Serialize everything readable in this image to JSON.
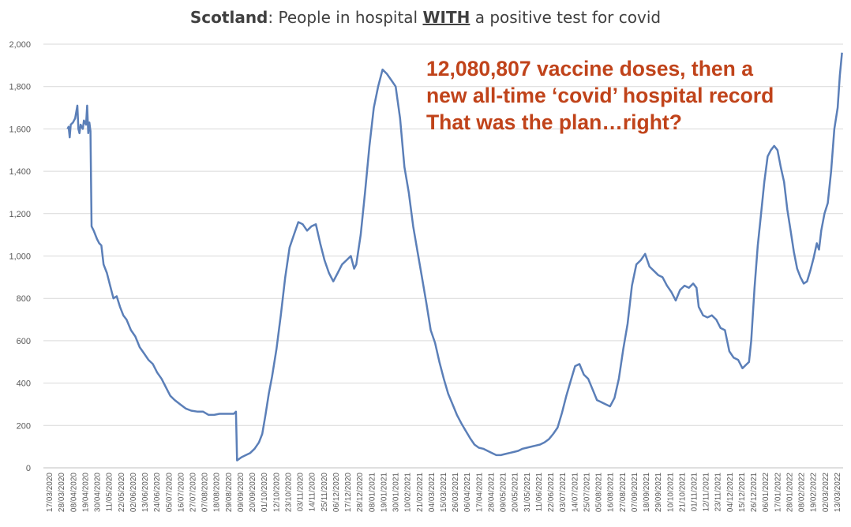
{
  "title": {
    "bold_part": "Scotland",
    "middle": ": People in hospital ",
    "emph": "WITH",
    "rest": " a positive test for covid"
  },
  "annotation": {
    "lines": [
      "12,080,807 vaccine doses, then a",
      "new all-time ‘covid’ hospital record",
      "That was the plan…right?"
    ]
  },
  "colors": {
    "line": "#5b7fb8",
    "annotation": "#c0431a",
    "grid": "#d9d9d9"
  },
  "chart_data": {
    "type": "line",
    "ylim": [
      0,
      2000
    ],
    "y_ticks": [
      "0",
      "200",
      "400",
      "600",
      "800",
      "1,000",
      "1,200",
      "1,400",
      "1,600",
      "1,800",
      "2,000"
    ],
    "x_ticks": [
      "17/03/2020",
      "28/03/2020",
      "08/04/2020",
      "19/04/2020",
      "30/04/2020",
      "11/05/2020",
      "22/05/2020",
      "02/06/2020",
      "13/06/2020",
      "24/06/2020",
      "05/07/2020",
      "16/07/2020",
      "27/07/2020",
      "07/08/2020",
      "18/08/2020",
      "29/08/2020",
      "09/09/2020",
      "20/09/2020",
      "01/10/2020",
      "12/10/2020",
      "23/10/2020",
      "03/11/2020",
      "14/11/2020",
      "25/11/2020",
      "06/12/2020",
      "17/12/2020",
      "28/12/2020",
      "08/01/2021",
      "19/01/2021",
      "30/01/2021",
      "10/02/2021",
      "21/02/2021",
      "04/03/2021",
      "15/03/2021",
      "26/03/2021",
      "06/04/2021",
      "17/04/2021",
      "28/04/2021",
      "09/05/2021",
      "20/05/2021",
      "31/05/2021",
      "11/06/2021",
      "22/06/2021",
      "03/07/2021",
      "14/07/2021",
      "25/07/2021",
      "05/08/2021",
      "16/08/2021",
      "27/08/2021",
      "07/09/2021",
      "18/09/2021",
      "29/09/2021",
      "10/10/2021",
      "21/10/2021",
      "01/11/2021",
      "12/11/2021",
      "23/11/2021",
      "04/12/2021",
      "15/12/2021",
      "26/12/2021",
      "06/01/2022",
      "17/01/2022",
      "28/01/2022",
      "08/02/2022",
      "19/02/2022",
      "02/03/2022",
      "13/03/2022"
    ],
    "x_start": "2020-03-17",
    "x_end": "2022-03-18",
    "series": [
      {
        "points": [
          [
            "2020-04-08",
            1600
          ],
          [
            "2020-04-09",
            1610
          ],
          [
            "2020-04-10",
            1560
          ],
          [
            "2020-04-11",
            1620
          ],
          [
            "2020-04-13",
            1630
          ],
          [
            "2020-04-15",
            1650
          ],
          [
            "2020-04-17",
            1710
          ],
          [
            "2020-04-18",
            1600
          ],
          [
            "2020-04-19",
            1580
          ],
          [
            "2020-04-20",
            1620
          ],
          [
            "2020-04-22",
            1600
          ],
          [
            "2020-04-23",
            1640
          ],
          [
            "2020-04-25",
            1620
          ],
          [
            "2020-04-26",
            1710
          ],
          [
            "2020-04-27",
            1580
          ],
          [
            "2020-04-28",
            1630
          ],
          [
            "2020-04-29",
            1590
          ],
          [
            "2020-04-30",
            1140
          ],
          [
            "2020-05-02",
            1120
          ],
          [
            "2020-05-05",
            1080
          ],
          [
            "2020-05-07",
            1060
          ],
          [
            "2020-05-09",
            1050
          ],
          [
            "2020-05-11",
            960
          ],
          [
            "2020-05-14",
            920
          ],
          [
            "2020-05-17",
            860
          ],
          [
            "2020-05-20",
            800
          ],
          [
            "2020-05-23",
            810
          ],
          [
            "2020-05-26",
            760
          ],
          [
            "2020-05-29",
            720
          ],
          [
            "2020-06-01",
            700
          ],
          [
            "2020-06-05",
            650
          ],
          [
            "2020-06-09",
            620
          ],
          [
            "2020-06-13",
            570
          ],
          [
            "2020-06-17",
            540
          ],
          [
            "2020-06-21",
            510
          ],
          [
            "2020-06-25",
            490
          ],
          [
            "2020-06-29",
            450
          ],
          [
            "2020-07-03",
            420
          ],
          [
            "2020-07-07",
            380
          ],
          [
            "2020-07-11",
            340
          ],
          [
            "2020-07-15",
            320
          ],
          [
            "2020-07-20",
            300
          ],
          [
            "2020-07-25",
            280
          ],
          [
            "2020-07-30",
            270
          ],
          [
            "2020-08-05",
            265
          ],
          [
            "2020-08-10",
            265
          ],
          [
            "2020-08-15",
            250
          ],
          [
            "2020-08-20",
            250
          ],
          [
            "2020-08-25",
            255
          ],
          [
            "2020-08-30",
            255
          ],
          [
            "2020-09-04",
            255
          ],
          [
            "2020-09-07",
            255
          ],
          [
            "2020-09-09",
            265
          ],
          [
            "2020-09-10",
            35
          ],
          [
            "2020-09-14",
            50
          ],
          [
            "2020-09-18",
            60
          ],
          [
            "2020-09-22",
            70
          ],
          [
            "2020-09-26",
            90
          ],
          [
            "2020-09-30",
            120
          ],
          [
            "2020-10-03",
            160
          ],
          [
            "2020-10-06",
            250
          ],
          [
            "2020-10-09",
            350
          ],
          [
            "2020-10-12",
            430
          ],
          [
            "2020-10-16",
            560
          ],
          [
            "2020-10-20",
            720
          ],
          [
            "2020-10-24",
            900
          ],
          [
            "2020-10-28",
            1040
          ],
          [
            "2020-11-01",
            1100
          ],
          [
            "2020-11-05",
            1160
          ],
          [
            "2020-11-09",
            1150
          ],
          [
            "2020-11-13",
            1120
          ],
          [
            "2020-11-17",
            1140
          ],
          [
            "2020-11-21",
            1150
          ],
          [
            "2020-11-25",
            1060
          ],
          [
            "2020-11-29",
            980
          ],
          [
            "2020-12-03",
            920
          ],
          [
            "2020-12-07",
            880
          ],
          [
            "2020-12-11",
            920
          ],
          [
            "2020-12-15",
            960
          ],
          [
            "2020-12-19",
            980
          ],
          [
            "2020-12-23",
            1000
          ],
          [
            "2020-12-26",
            940
          ],
          [
            "2020-12-28",
            960
          ],
          [
            "2021-01-01",
            1100
          ],
          [
            "2021-01-05",
            1300
          ],
          [
            "2021-01-09",
            1520
          ],
          [
            "2021-01-13",
            1700
          ],
          [
            "2021-01-17",
            1800
          ],
          [
            "2021-01-21",
            1880
          ],
          [
            "2021-01-25",
            1860
          ],
          [
            "2021-01-29",
            1830
          ],
          [
            "2021-02-02",
            1800
          ],
          [
            "2021-02-06",
            1650
          ],
          [
            "2021-02-10",
            1420
          ],
          [
            "2021-02-14",
            1300
          ],
          [
            "2021-02-18",
            1140
          ],
          [
            "2021-02-22",
            1020
          ],
          [
            "2021-02-26",
            900
          ],
          [
            "2021-03-02",
            780
          ],
          [
            "2021-03-06",
            650
          ],
          [
            "2021-03-10",
            590
          ],
          [
            "2021-03-14",
            500
          ],
          [
            "2021-03-18",
            420
          ],
          [
            "2021-03-22",
            350
          ],
          [
            "2021-03-26",
            300
          ],
          [
            "2021-03-30",
            250
          ],
          [
            "2021-04-03",
            210
          ],
          [
            "2021-04-07",
            175
          ],
          [
            "2021-04-11",
            140
          ],
          [
            "2021-04-15",
            110
          ],
          [
            "2021-04-19",
            95
          ],
          [
            "2021-04-23",
            90
          ],
          [
            "2021-04-27",
            80
          ],
          [
            "2021-05-01",
            70
          ],
          [
            "2021-05-05",
            60
          ],
          [
            "2021-05-09",
            60
          ],
          [
            "2021-05-13",
            65
          ],
          [
            "2021-05-17",
            70
          ],
          [
            "2021-05-21",
            75
          ],
          [
            "2021-05-25",
            80
          ],
          [
            "2021-05-29",
            90
          ],
          [
            "2021-06-02",
            95
          ],
          [
            "2021-06-06",
            100
          ],
          [
            "2021-06-10",
            105
          ],
          [
            "2021-06-14",
            110
          ],
          [
            "2021-06-18",
            120
          ],
          [
            "2021-06-22",
            135
          ],
          [
            "2021-06-26",
            160
          ],
          [
            "2021-06-30",
            190
          ],
          [
            "2021-07-04",
            260
          ],
          [
            "2021-07-08",
            340
          ],
          [
            "2021-07-12",
            410
          ],
          [
            "2021-07-16",
            480
          ],
          [
            "2021-07-20",
            490
          ],
          [
            "2021-07-24",
            440
          ],
          [
            "2021-07-28",
            420
          ],
          [
            "2021-08-01",
            370
          ],
          [
            "2021-08-05",
            320
          ],
          [
            "2021-08-09",
            310
          ],
          [
            "2021-08-13",
            300
          ],
          [
            "2021-08-17",
            290
          ],
          [
            "2021-08-21",
            330
          ],
          [
            "2021-08-25",
            420
          ],
          [
            "2021-08-29",
            560
          ],
          [
            "2021-09-02",
            680
          ],
          [
            "2021-09-06",
            860
          ],
          [
            "2021-09-10",
            960
          ],
          [
            "2021-09-14",
            980
          ],
          [
            "2021-09-18",
            1010
          ],
          [
            "2021-09-22",
            950
          ],
          [
            "2021-09-26",
            930
          ],
          [
            "2021-09-30",
            910
          ],
          [
            "2021-10-04",
            900
          ],
          [
            "2021-10-08",
            860
          ],
          [
            "2021-10-12",
            830
          ],
          [
            "2021-10-16",
            790
          ],
          [
            "2021-10-20",
            840
          ],
          [
            "2021-10-24",
            860
          ],
          [
            "2021-10-28",
            850
          ],
          [
            "2021-11-01",
            870
          ],
          [
            "2021-11-04",
            850
          ],
          [
            "2021-11-06",
            760
          ],
          [
            "2021-11-10",
            720
          ],
          [
            "2021-11-14",
            710
          ],
          [
            "2021-11-18",
            720
          ],
          [
            "2021-11-22",
            700
          ],
          [
            "2021-11-26",
            660
          ],
          [
            "2021-11-30",
            650
          ],
          [
            "2021-12-04",
            550
          ],
          [
            "2021-12-08",
            520
          ],
          [
            "2021-12-12",
            510
          ],
          [
            "2021-12-16",
            470
          ],
          [
            "2021-12-20",
            490
          ],
          [
            "2021-12-22",
            500
          ],
          [
            "2021-12-24",
            600
          ],
          [
            "2021-12-27",
            850
          ],
          [
            "2021-12-30",
            1050
          ],
          [
            "2022-01-02",
            1200
          ],
          [
            "2022-01-05",
            1350
          ],
          [
            "2022-01-08",
            1470
          ],
          [
            "2022-01-11",
            1500
          ],
          [
            "2022-01-14",
            1520
          ],
          [
            "2022-01-17",
            1500
          ],
          [
            "2022-01-20",
            1420
          ],
          [
            "2022-01-23",
            1350
          ],
          [
            "2022-01-26",
            1220
          ],
          [
            "2022-01-29",
            1120
          ],
          [
            "2022-02-01",
            1020
          ],
          [
            "2022-02-04",
            940
          ],
          [
            "2022-02-07",
            900
          ],
          [
            "2022-02-10",
            870
          ],
          [
            "2022-02-13",
            880
          ],
          [
            "2022-02-16",
            930
          ],
          [
            "2022-02-19",
            990
          ],
          [
            "2022-02-22",
            1060
          ],
          [
            "2022-02-24",
            1030
          ],
          [
            "2022-02-26",
            1120
          ],
          [
            "2022-03-01",
            1200
          ],
          [
            "2022-03-04",
            1250
          ],
          [
            "2022-03-07",
            1400
          ],
          [
            "2022-03-10",
            1600
          ],
          [
            "2022-03-13",
            1700
          ],
          [
            "2022-03-15",
            1850
          ],
          [
            "2022-03-17",
            1960
          ]
        ]
      }
    ]
  }
}
